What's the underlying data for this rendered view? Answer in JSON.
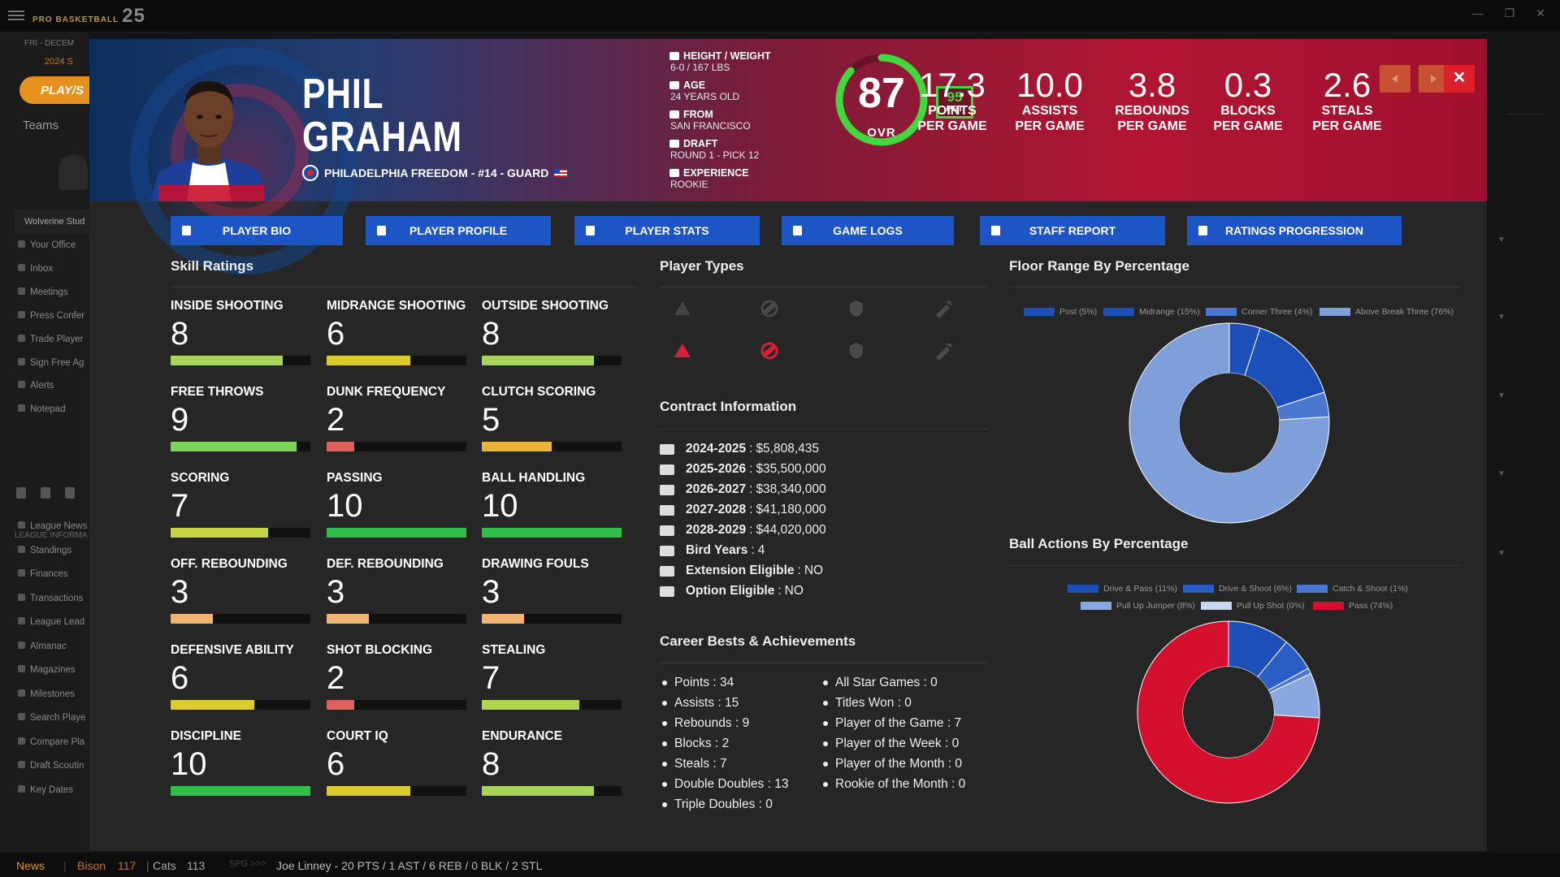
{
  "app": {
    "logo": "PRO BASKETBALL",
    "logo_year": "25",
    "window": {
      "minimize": "—",
      "restore": "❐",
      "close": "✕"
    }
  },
  "sidebar": {
    "date": "FRI - DECEM",
    "season": "2024 S",
    "play_label": "PLAY/S",
    "teams_label": "Teams",
    "team_section": "Wolverine Stud",
    "items": [
      "Your Office",
      "Inbox",
      "Meetings",
      "Press Confer",
      "Trade Player",
      "Sign Free Ag",
      "Alerts",
      "Notepad"
    ],
    "league_header": "LEAGUE INFORMA",
    "league_items": [
      "League News",
      "Standings",
      "Finances",
      "Transactions",
      "League Lead",
      "Almanac",
      "Magazines",
      "Milestones",
      "Search Playe",
      "Compare Pla",
      "Draft Scoutin",
      "Key Dates"
    ]
  },
  "player": {
    "first_name": "PHIL",
    "last_name": "GRAHAM",
    "team_line": "PHILADELPHIA FREEDOM - #14 - GUARD",
    "bio": [
      {
        "label": "HEIGHT / WEIGHT",
        "value": "6-0 / 167 LBS",
        "icon": "ruler-icon"
      },
      {
        "label": "AGE",
        "value": "24 YEARS OLD",
        "icon": "calendar-icon"
      },
      {
        "label": "FROM",
        "value": "SAN FRANCISCO",
        "icon": "building-icon"
      },
      {
        "label": "DRAFT",
        "value": "ROUND 1 - PICK 12",
        "icon": "hash-icon"
      },
      {
        "label": "EXPERIENCE",
        "value": "ROOKIE",
        "icon": "users-icon"
      }
    ],
    "ovr": "87",
    "ovr_label": "OVR",
    "ovr_fraction": 0.87,
    "pot": "95",
    "pot_label": "POT",
    "stats": [
      {
        "value": "17.3",
        "l1": "POINTS",
        "l2": "PER GAME"
      },
      {
        "value": "10.0",
        "l1": "ASSISTS",
        "l2": "PER GAME"
      },
      {
        "value": "3.8",
        "l1": "REBOUNDS",
        "l2": "PER GAME"
      },
      {
        "value": "0.3",
        "l1": "BLOCKS",
        "l2": "PER GAME"
      },
      {
        "value": "2.6",
        "l1": "STEALS",
        "l2": "PER GAME"
      }
    ]
  },
  "header_buttons": {
    "close": "✕"
  },
  "tabs": [
    "PLAYER BIO",
    "PLAYER PROFILE",
    "PLAYER STATS",
    "GAME LOGS",
    "STAFF REPORT",
    "RATINGS PROGRESSION"
  ],
  "skills": {
    "title": "Skill Ratings",
    "items": [
      {
        "name": "INSIDE SHOOTING",
        "value": "8",
        "color": "#a8d45a"
      },
      {
        "name": "MIDRANGE SHOOTING",
        "value": "6",
        "color": "#dccb2e"
      },
      {
        "name": "OUTSIDE SHOOTING",
        "value": "8",
        "color": "#a8d45a"
      },
      {
        "name": "FREE THROWS",
        "value": "9",
        "color": "#7ed35a"
      },
      {
        "name": "DUNK FREQUENCY",
        "value": "2",
        "color": "#e06060"
      },
      {
        "name": "CLUTCH SCORING",
        "value": "5",
        "color": "#e8b43c"
      },
      {
        "name": "SCORING",
        "value": "7",
        "color": "#c4d445"
      },
      {
        "name": "PASSING",
        "value": "10",
        "color": "#2fbf4a"
      },
      {
        "name": "BALL HANDLING",
        "value": "10",
        "color": "#2fbf4a"
      },
      {
        "name": "OFF. REBOUNDING",
        "value": "3",
        "color": "#f0b470"
      },
      {
        "name": "DEF. REBOUNDING",
        "value": "3",
        "color": "#f0b470"
      },
      {
        "name": "DRAWING FOULS",
        "value": "3",
        "color": "#f0b470"
      },
      {
        "name": "DEFENSIVE ABILITY",
        "value": "6",
        "color": "#dccb2e"
      },
      {
        "name": "SHOT BLOCKING",
        "value": "2",
        "color": "#e06060"
      },
      {
        "name": "STEALING",
        "value": "7",
        "color": "#b0d44a"
      },
      {
        "name": "DISCIPLINE",
        "value": "10",
        "color": "#2fbf4a"
      },
      {
        "name": "COURT IQ",
        "value": "6",
        "color": "#dccb2e"
      },
      {
        "name": "ENDURANCE",
        "value": "8",
        "color": "#a8d45a"
      }
    ]
  },
  "player_types": {
    "title": "Player Types",
    "icons": [
      {
        "name": "ball-hand-icon",
        "active": false
      },
      {
        "name": "crosshair-icon",
        "active": false
      },
      {
        "name": "lightning-icon",
        "active": false
      },
      {
        "name": "hammer-icon",
        "active": false
      },
      {
        "name": "cone-icon",
        "active": true
      },
      {
        "name": "pill-icon",
        "active": true
      },
      {
        "name": "shield-icon",
        "active": false
      },
      {
        "name": "broom-icon",
        "active": false
      }
    ]
  },
  "contract": {
    "title": "Contract Information",
    "rows": [
      {
        "label": "2024-2025",
        "value": "$5,808,435",
        "icon": "id-card-icon"
      },
      {
        "label": "2025-2026",
        "value": "$35,500,000",
        "icon": "id-card-icon"
      },
      {
        "label": "2026-2027",
        "value": "$38,340,000",
        "icon": "id-card-icon"
      },
      {
        "label": "2027-2028",
        "value": "$41,180,000",
        "icon": "id-card-icon"
      },
      {
        "label": "2028-2029",
        "value": "$44,020,000",
        "icon": "id-card-icon"
      },
      {
        "label": "Bird Years",
        "value": "4",
        "icon": "feather-icon"
      },
      {
        "label": "Extension Eligible",
        "value": "NO",
        "icon": "external-link-icon"
      },
      {
        "label": "Option Eligible",
        "value": "NO",
        "icon": "thumbs-up-icon"
      }
    ]
  },
  "career": {
    "title": "Career Bests & Achievements",
    "left": [
      {
        "label": "Points",
        "value": "34"
      },
      {
        "label": "Assists",
        "value": "15"
      },
      {
        "label": "Rebounds",
        "value": "9"
      },
      {
        "label": "Blocks",
        "value": "2"
      },
      {
        "label": "Steals",
        "value": "7"
      },
      {
        "label": "Double Doubles",
        "value": "13"
      },
      {
        "label": "Triple Doubles",
        "value": "0"
      }
    ],
    "right": [
      {
        "label": "All Star Games",
        "value": "0"
      },
      {
        "label": "Titles Won",
        "value": "0"
      },
      {
        "label": "Player of the Game",
        "value": "7"
      },
      {
        "label": "Player of the Week",
        "value": "0"
      },
      {
        "label": "Player of the Month",
        "value": "0"
      },
      {
        "label": "Rookie of the Month",
        "value": "0"
      }
    ]
  },
  "chart_data": [
    {
      "type": "pie",
      "title": "Floor Range By Percentage",
      "categories": [
        "Post (5%)",
        "Midrange (15%)",
        "Corner Three (4%)",
        "Above Break Three (76%)"
      ],
      "values": [
        5,
        15,
        4,
        76
      ],
      "colors": [
        "#1d4fb8",
        "#1d4fb8",
        "#4a78d0",
        "#7f9fdb"
      ],
      "legend": "top"
    },
    {
      "type": "pie",
      "title": "Ball Actions By Percentage",
      "categories": [
        "Drive & Pass (11%)",
        "Drive & Shoot (6%)",
        "Catch & Shoot (1%)",
        "Pull Up Jumper (8%)",
        "Pull Up Shot (0%)",
        "Pass (74%)"
      ],
      "values": [
        11,
        6,
        1,
        8,
        0,
        74
      ],
      "colors": [
        "#1d4fb8",
        "#2a5ec4",
        "#4a78d0",
        "#8aa8e0",
        "#c8d6f0",
        "#d5102f"
      ],
      "legend": "top"
    }
  ],
  "ticker": {
    "label": "News",
    "team1": "Bison",
    "score1": "117",
    "team2": "Cats",
    "score2": "113",
    "tag": "SPG >>>",
    "text": "Joe Linney - 20 PTS / 1 AST / 6 REB / 0 BLK / 2 STL"
  }
}
